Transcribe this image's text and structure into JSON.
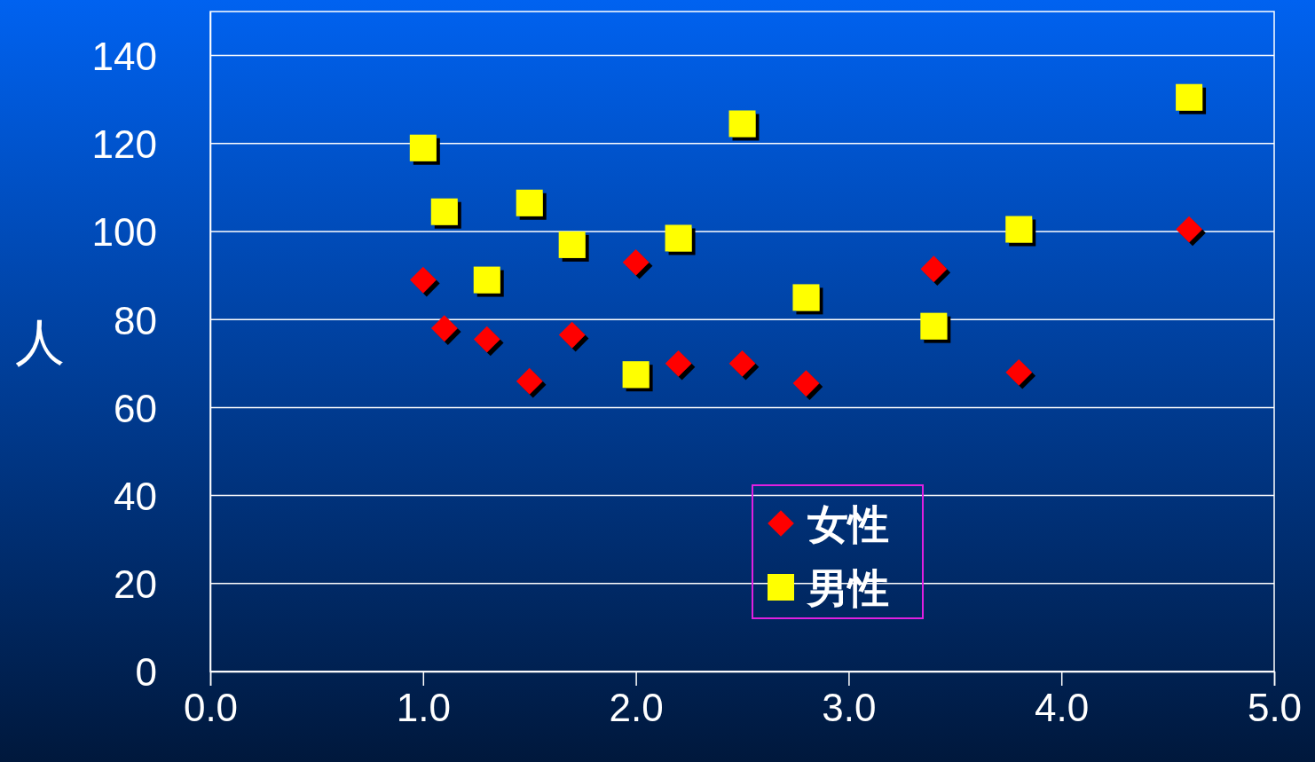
{
  "chart_data": {
    "type": "scatter",
    "ylabel": "人",
    "xlim": [
      0,
      5
    ],
    "xticks": [
      {
        "value": 0,
        "label": "0.0"
      },
      {
        "value": 1,
        "label": "1.0"
      },
      {
        "value": 2,
        "label": "2.0"
      },
      {
        "value": 3,
        "label": "3.0"
      },
      {
        "value": 4,
        "label": "4.0"
      },
      {
        "value": 5,
        "label": "5.0"
      }
    ],
    "ylim": [
      0,
      150
    ],
    "yticks": [
      0,
      20,
      40,
      60,
      80,
      100,
      120,
      140
    ],
    "grid": "y",
    "legend": "bottom",
    "series": [
      {
        "name": "女性",
        "color": "#ff0000",
        "marker": "diamond",
        "x": [
          1.0,
          1.1,
          1.3,
          1.5,
          1.7,
          2.0,
          2.2,
          2.5,
          2.8,
          3.4,
          3.8,
          4.6
        ],
        "values": [
          89,
          78,
          75.5,
          66,
          76.5,
          93,
          70,
          70,
          65.5,
          91.5,
          68,
          100.5
        ]
      },
      {
        "name": "男性",
        "color": "#ffff00",
        "marker": "square",
        "x": [
          1.0,
          1.1,
          1.3,
          1.5,
          1.7,
          2.0,
          2.2,
          2.5,
          2.8,
          3.4,
          3.8,
          4.6
        ],
        "values": [
          119,
          104.5,
          89,
          106.5,
          97,
          67.5,
          98.5,
          124.5,
          85,
          78.5,
          100.5,
          130.5
        ]
      }
    ]
  }
}
